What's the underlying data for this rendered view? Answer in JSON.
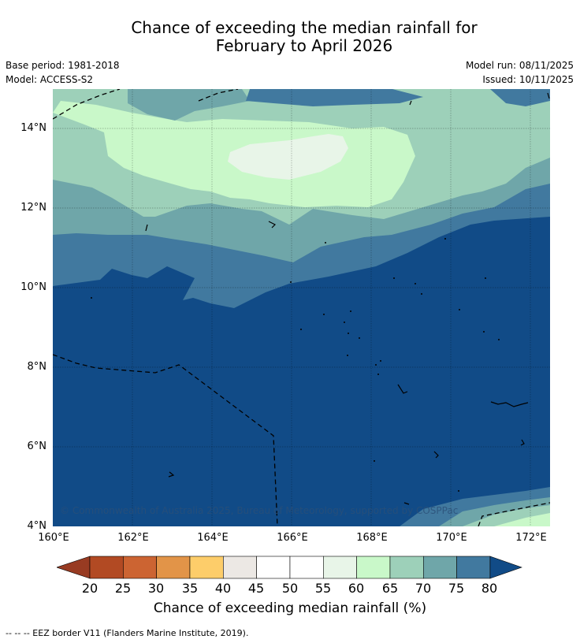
{
  "title": {
    "line1": "Chance of exceeding the median rainfall for",
    "line2": "February to April 2026"
  },
  "meta": {
    "base_period": "Base period: 1981-2018",
    "model": "Model: ACCESS-S2",
    "model_run": "Model run: 08/11/2025",
    "issued": "Issued: 10/11/2025"
  },
  "map": {
    "x_ticks": [
      "160°E",
      "162°E",
      "164°E",
      "166°E",
      "168°E",
      "170°E",
      "172°E"
    ],
    "y_ticks": [
      "14°N",
      "12°N",
      "10°N",
      "8°N",
      "6°N",
      "4°N"
    ],
    "copyright": "© Commonwealth of Australia 2025, Bureau of Meteorology, supported by COSPPac",
    "colors": {
      "c80": "#114b87",
      "c75": "#41799f",
      "c70": "#6fa6a9",
      "c65": "#9dd0b9",
      "c60": "#c9f8c9",
      "c55": "#e8f5e8"
    }
  },
  "colorbar": {
    "labels": [
      "20",
      "25",
      "30",
      "35",
      "40",
      "45",
      "50",
      "55",
      "60",
      "65",
      "70",
      "75",
      "80"
    ],
    "colors": [
      "#b24a23",
      "#cc6432",
      "#e29448",
      "#fdcd6a",
      "#ece8e4",
      "#ffffff",
      "#ffffff",
      "#e8f5e8",
      "#c9f8c9",
      "#9dd0b9",
      "#6fa6a9",
      "#41799f"
    ],
    "under_color": "#983b22",
    "over_color": "#114b87",
    "title": "Chance of exceeding median rainfall (%)"
  },
  "footer": "--  --  -- EEZ border V11 (Flanders Marine Institute, 2019)."
}
